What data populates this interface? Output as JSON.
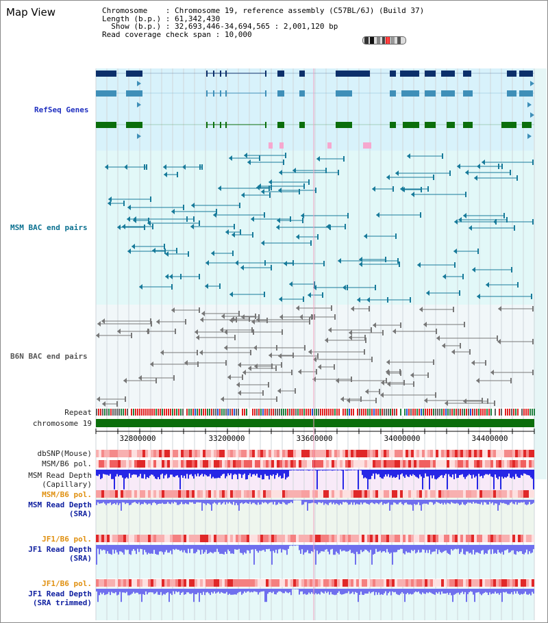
{
  "title": "Map View",
  "info": {
    "chromosome_label": "Chromosome",
    "chromosome_value": "Chromosome 19, reference assembly (C57BL/6J) (Build 37)",
    "length_label": "Length (b.p.)",
    "length_value": "61,342,430",
    "show_label": "Show (b.p.)",
    "show_value": "32,693,446-34,694,565 : 2,001,120 bp",
    "coverage_label": "Read coverage check span",
    "coverage_value": "10,000"
  },
  "tracks": {
    "refseq": "RefSeq Genes",
    "msm_bac": "MSM BAC end pairs",
    "b6n_bac": "B6N BAC end pairs",
    "repeat": "Repeat",
    "chromosome": "chromosome 19",
    "dbsnp": "dbSNP(Mouse)",
    "msm_b6_pol_1": "MSM/B6 pol.",
    "msm_read_depth_cap": "MSM Read Depth\n(Capillary)",
    "msm_b6_pol_2": "MSM/B6 pol.",
    "msm_read_depth_sra": "MSM Read Depth\n(SRA)",
    "jf1_b6_pol_1": "JF1/B6 pol.",
    "jf1_read_depth_sra": "JF1 Read Depth\n(SRA)",
    "jf1_b6_pol_2": "JF1/B6 pol.",
    "jf1_read_depth_trimmed": "JF1 Read Depth\n(SRA trimmed)"
  },
  "axis": {
    "ticks": [
      "32800000",
      "33200000",
      "33600000",
      "34000000",
      "34400000"
    ]
  },
  "colors": {
    "refseq_bg": "#d8f2fb",
    "refseq_dark": "#0c2f6a",
    "refseq_mid": "#3f8fb8",
    "refseq_green": "#0b6e0b",
    "msm_bg": "#e2f8f8",
    "msm_feature": "#177a9a",
    "b6n_feature": "#777777",
    "chromosome_bar": "#0b6e0b",
    "depth_blue": "#2626e6",
    "depth_light": "#6f6fee",
    "pol_red": "#f05a5a"
  }
}
